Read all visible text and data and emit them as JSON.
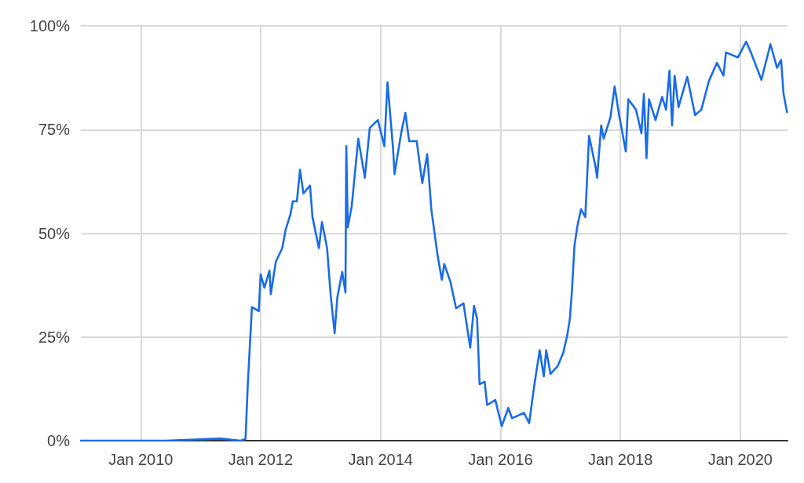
{
  "chart_data": {
    "type": "line",
    "xlim": [
      "2009-01",
      "2020-10-15"
    ],
    "ylim": [
      0,
      100
    ],
    "xticks": [
      {
        "value": "2010-01",
        "label": "Jan 2010"
      },
      {
        "value": "2012-01",
        "label": "Jan 2012"
      },
      {
        "value": "2014-01",
        "label": "Jan 2014"
      },
      {
        "value": "2016-01",
        "label": "Jan 2016"
      },
      {
        "value": "2018-01",
        "label": "Jan 2018"
      },
      {
        "value": "2020-01",
        "label": "Jan 2020"
      }
    ],
    "yticks": [
      {
        "value": 0,
        "label": "0%"
      },
      {
        "value": 25,
        "label": "25%"
      },
      {
        "value": 50,
        "label": "50%"
      },
      {
        "value": 75,
        "label": "75%"
      },
      {
        "value": 100,
        "label": "100%"
      }
    ],
    "grid": true,
    "marker": "none",
    "line_style": "solid",
    "x": [
      "2009-01",
      "2010-06",
      "2011-05",
      "2011-09",
      "2011-10",
      "2011-10-15",
      "2011-11-09",
      "2011-12-21",
      "2012-01-01",
      "2012-01-24",
      "2012-02-24",
      "2012-03-03",
      "2012-04-03",
      "2012-05-12",
      "2012-06-01",
      "2012-07-01",
      "2012-07-15",
      "2012-08-09",
      "2012-08-28",
      "2012-09-18",
      "2012-10-28",
      "2012-11-12",
      "2012-12-21",
      "2013-01-09",
      "2013-02-09",
      "2013-03-03",
      "2013-03-27",
      "2013-04-12",
      "2013-05-12",
      "2013-06-01",
      "2013-06-06",
      "2013-06-15",
      "2013-07-09",
      "2013-08-18",
      "2013-09-27",
      "2013-10-27",
      "2013-12-15",
      "2014-01-24",
      "2014-02-12",
      "2014-03-18",
      "2014-03-27",
      "2014-05-06",
      "2014-06-01",
      "2014-06-24",
      "2014-08-09",
      "2014-09-12",
      "2014-10-12",
      "2014-11-06",
      "2014-12-15",
      "2015-01-09",
      "2015-01-24",
      "2015-03-03",
      "2015-04-06",
      "2015-05-21",
      "2015-07-01",
      "2015-07-24",
      "2015-08-12",
      "2015-08-27",
      "2015-09-27",
      "2015-10-12",
      "2015-12-01",
      "2016-01-09",
      "2016-02-18",
      "2016-03-12",
      "2016-05-24",
      "2016-06-24",
      "2016-07-24",
      "2016-08-27",
      "2016-09-21",
      "2016-10-06",
      "2016-11-01",
      "2016-12-15",
      "2017-01-18",
      "2017-02-12",
      "2017-02-27",
      "2017-03-12",
      "2017-03-27",
      "2017-04-15",
      "2017-05-06",
      "2017-06-01",
      "2017-06-24",
      "2017-08-03",
      "2017-08-12",
      "2017-09-06",
      "2017-09-21",
      "2017-11-01",
      "2017-11-27",
      "2017-12-24",
      "2018-02-03",
      "2018-02-18",
      "2018-04-06",
      "2018-05-09",
      "2018-05-24",
      "2018-06-09",
      "2018-06-24",
      "2018-08-03",
      "2018-09-12",
      "2018-10-06",
      "2018-10-27",
      "2018-11-12",
      "2018-11-27",
      "2018-12-21",
      "2019-02-12",
      "2019-04-01",
      "2019-05-09",
      "2019-06-24",
      "2019-08-12",
      "2019-09-21",
      "2019-10-06",
      "2019-12-18",
      "2020-02-06",
      "2020-03-06",
      "2020-05-09",
      "2020-07-03",
      "2020-08-12",
      "2020-09-06",
      "2020-09-21",
      "2020-10-12"
    ],
    "series": [
      {
        "color": "#1a6ce8",
        "values": [
          0,
          0,
          0.5,
          0,
          0.4,
          13.6,
          32.2,
          31.2,
          40.1,
          36.9,
          41.0,
          35.3,
          43.2,
          46.4,
          50.8,
          54.6,
          57.7,
          57.7,
          65.3,
          59.6,
          61.5,
          53.9,
          46.4,
          52.7,
          46.4,
          35.0,
          25.9,
          34.4,
          40.7,
          35.7,
          71.0,
          51.4,
          56.5,
          72.8,
          63.4,
          75.4,
          77.3,
          71.0,
          86.4,
          70.3,
          64.3,
          74.1,
          79.0,
          72.2,
          72.2,
          62.1,
          69.1,
          55.8,
          44.5,
          38.8,
          42.6,
          38.2,
          31.9,
          33.1,
          22.4,
          32.5,
          29.4,
          13.6,
          14.2,
          8.6,
          9.8,
          3.5,
          7.9,
          5.4,
          6.7,
          4.2,
          13.0,
          21.8,
          15.5,
          21.8,
          16.1,
          18.0,
          21.2,
          25.6,
          29.4,
          36.3,
          47.0,
          52.0,
          55.8,
          53.9,
          73.5,
          65.9,
          63.4,
          76.0,
          72.8,
          77.9,
          85.4,
          78.5,
          69.7,
          82.3,
          79.8,
          74.1,
          83.6,
          68.1,
          82.3,
          77.3,
          82.9,
          79.8,
          89.2,
          76.0,
          88.0,
          80.4,
          87.7,
          78.5,
          79.8,
          86.7,
          91.1,
          88.0,
          93.6,
          92.4,
          96.2,
          93.6,
          87.0,
          95.6,
          89.9,
          91.8,
          83.6,
          79.2
        ]
      }
    ]
  }
}
